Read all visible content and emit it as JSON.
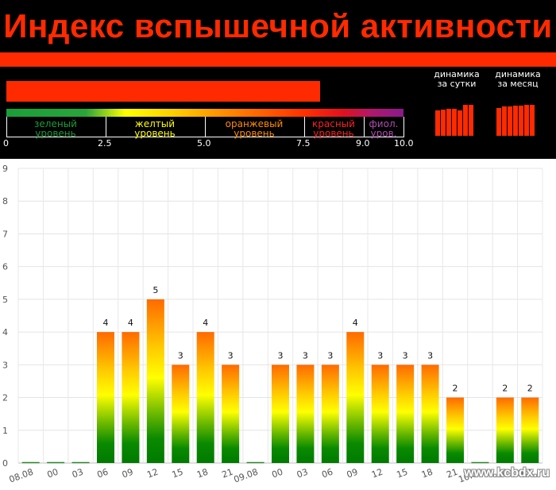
{
  "header": {
    "title": "Индекс вспышечной активности",
    "index_value": 7.9,
    "accent_color": "#ff2a00",
    "scale": {
      "levels": [
        {
          "label1": "зеленый",
          "label2": "уровень",
          "color": "#1a9e3a"
        },
        {
          "label1": "желтый",
          "label2": "уровень",
          "color": "#ffff00"
        },
        {
          "label1": "оранжевый",
          "label2": "уровень",
          "color": "#ff8c00"
        },
        {
          "label1": "красный",
          "label2": "уровень",
          "color": "#ff2020"
        },
        {
          "label1": "фиол.",
          "label2": "уров.",
          "color": "#b04cb0"
        }
      ],
      "ticks": [
        "0",
        "2.5",
        "5.0",
        "7.5",
        "9.0",
        "10.0"
      ],
      "tick_values": [
        0,
        2.5,
        5.0,
        7.5,
        9.0,
        10.0
      ]
    },
    "dynamics": {
      "day": {
        "label1": "динамика",
        "label2": "за сутки",
        "values": [
          0.72,
          0.74,
          0.75,
          0.76,
          0.71,
          0.87,
          0.87
        ]
      },
      "month": {
        "label1": "динамика",
        "label2": "за месяц",
        "values": [
          0.78,
          0.82,
          0.83,
          0.84,
          0.84,
          0.86,
          0.87
        ]
      }
    }
  },
  "chart_data": {
    "type": "bar",
    "ylim": [
      0,
      9
    ],
    "yticks": [
      "0",
      "1",
      "2",
      "3",
      "4",
      "5",
      "6",
      "7",
      "8",
      "9"
    ],
    "grid": true,
    "categories": [
      "08.08",
      "00",
      "03",
      "06",
      "09",
      "12",
      "15",
      "18",
      "21",
      "09.08",
      "00",
      "03",
      "06",
      "09",
      "12",
      "15",
      "18",
      "21",
      "10.08",
      "00",
      "03"
    ],
    "values": [
      0,
      0,
      0,
      4,
      4,
      5,
      3,
      4,
      3,
      0,
      3,
      3,
      3,
      4,
      3,
      3,
      3,
      2,
      0,
      2,
      2
    ],
    "data_labels": [
      "",
      "",
      "",
      "4",
      "4",
      "5",
      "3",
      "4",
      "3",
      "",
      "3",
      "3",
      "3",
      "4",
      "3",
      "3",
      "3",
      "2",
      "",
      "2",
      "2"
    ]
  },
  "watermark": "www.kcbdx.ru"
}
